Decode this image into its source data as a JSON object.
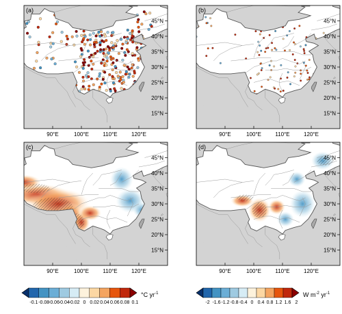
{
  "panels": [
    {
      "id": "a",
      "label": "(a)"
    },
    {
      "id": "b",
      "label": "(b)"
    },
    {
      "id": "c",
      "label": "(c)"
    },
    {
      "id": "d",
      "label": "(d)"
    }
  ],
  "lat_ticks": [
    "45°N",
    "40°N",
    "35°N",
    "30°N",
    "25°N",
    "20°N",
    "15°N"
  ],
  "lon_ticks": [
    "90°E",
    "100°E",
    "110°E",
    "120°E"
  ],
  "colors": {
    "ocean": "#d3d3d3",
    "land": "#ffffff",
    "border": "#555555",
    "province": "#9a9a9a"
  },
  "colorbar_left": {
    "labels": [
      "-0.1",
      "-0.08",
      "-0.06",
      "-0.04",
      "-0.02",
      "0",
      "0.02",
      "0.04",
      "0.06",
      "0.08",
      "0.1"
    ],
    "unit": "°C yr",
    "unit_sup": "-1",
    "colors": [
      "#08306b",
      "#2166ac",
      "#4393c3",
      "#6baed6",
      "#9ecae1",
      "#d6ecf5",
      "#fdf2dc",
      "#fcd7a3",
      "#f4a460",
      "#e6550d",
      "#c0280c",
      "#8b0000"
    ]
  },
  "colorbar_right": {
    "labels": [
      "-2",
      "-1.6",
      "-1.2",
      "-0.8",
      "-0.4",
      "0",
      "0.4",
      "0.8",
      "1.2",
      "1.6",
      "2"
    ],
    "unit": "W m",
    "unit_sup1": "-2",
    "unit_mid": " yr",
    "unit_sup2": "-1",
    "colors": [
      "#08306b",
      "#2166ac",
      "#4393c3",
      "#6baed6",
      "#9ecae1",
      "#d6ecf5",
      "#fdf2dc",
      "#fcd7a3",
      "#f4a460",
      "#e6550d",
      "#c0280c",
      "#8b0000"
    ]
  }
}
